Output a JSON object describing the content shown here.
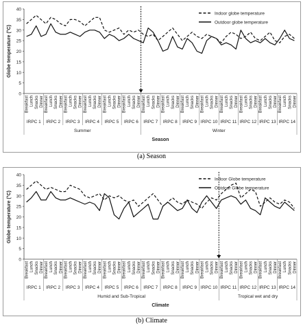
{
  "chart_data": [
    {
      "type": "line",
      "ylabel": "Globe temperature (°C)",
      "ylim": [
        0,
        40
      ],
      "yticks": [
        0,
        5,
        10,
        15,
        20,
        25,
        30,
        35,
        40
      ],
      "meals": [
        "Breakfast",
        "Lunch",
        "Snacks",
        "Dinner"
      ],
      "groups": [
        "IRPC 1",
        "IRPC 2",
        "IRPC 3",
        "IRPC 4",
        "IRPC 5",
        "IRPC 6",
        "IRPC 7",
        "IRPC 8",
        "IRPC 9",
        "IRPC 10",
        "IRPC 11",
        "IRPC 12",
        "IRPC 13",
        "IRPC 14"
      ],
      "categories_upper": [
        "Summer",
        "Winter"
      ],
      "xlabel": "Season",
      "divider_after_group": 6,
      "legend_position": "top-right",
      "grid": false,
      "series": [
        {
          "name": "Indoor globe temperature",
          "style": "dashed",
          "values": [
            33,
            35,
            37,
            35,
            33,
            36,
            35,
            33,
            32,
            35,
            35,
            34,
            32,
            34,
            36,
            36,
            30,
            29,
            30,
            31,
            28,
            30,
            29,
            30,
            28,
            27,
            28,
            25,
            27,
            29,
            31,
            28,
            25,
            27,
            29,
            27,
            26,
            28,
            27,
            26,
            24,
            27,
            29,
            28,
            26,
            27,
            29,
            26,
            25,
            27,
            29,
            25,
            24,
            27,
            28,
            26
          ]
        },
        {
          "name": "Outdoor globe temperature",
          "style": "solid",
          "values": [
            27,
            28,
            32,
            27,
            28,
            33,
            29,
            28,
            28,
            29,
            28,
            27,
            29,
            30,
            30,
            29,
            26,
            28,
            27,
            25,
            26,
            28,
            26,
            25,
            24,
            31,
            29,
            25,
            20,
            21,
            27,
            22,
            21,
            26,
            24,
            20,
            19,
            25,
            27,
            26,
            23,
            24,
            23,
            21,
            30,
            26,
            24,
            25,
            24,
            26,
            24,
            23,
            26,
            30,
            26,
            25
          ]
        }
      ]
    },
    {
      "type": "line",
      "ylabel": "Globe temperature (°C)",
      "ylim": [
        0,
        40
      ],
      "yticks": [
        0,
        5,
        10,
        15,
        20,
        25,
        30,
        35,
        40
      ],
      "meals": [
        "Breakfast",
        "Lunch",
        "Snacks",
        "Dinner"
      ],
      "groups": [
        "IRPC 1",
        "IRPC 2",
        "IRPC 3",
        "IRPC 4",
        "IRPC 5",
        "IRPC 6",
        "IRPC 7",
        "IRPC 8",
        "IRPC 9",
        "IRPC 10",
        "IRPC 11",
        "IRPC 12",
        "IRPC 13",
        "IRPC 14"
      ],
      "categories_upper": [
        "Humid and Sub-Tropical",
        "Tropical wet and dry"
      ],
      "xlabel": "Climate",
      "divider_after_group": 10,
      "legend_position": "top-right",
      "grid": false,
      "series": [
        {
          "name": "Indoor Globe temperature",
          "style": "dashed",
          "values": [
            33,
            35,
            37,
            35,
            33,
            34,
            33,
            32,
            32,
            35,
            34,
            33,
            30,
            29,
            30,
            31,
            28,
            30,
            29,
            30,
            28,
            27,
            28,
            25,
            27,
            29,
            31,
            28,
            25,
            27,
            29,
            27,
            26,
            28,
            27,
            26,
            24,
            27,
            29,
            28,
            31,
            33,
            35,
            36,
            29,
            31,
            33,
            32,
            25,
            27,
            29,
            27,
            26,
            28,
            27,
            24
          ]
        },
        {
          "name": "Outdoor Globe temperature",
          "style": "solid",
          "values": [
            27,
            29,
            32,
            28,
            28,
            32,
            29,
            28,
            28,
            29,
            28,
            27,
            26,
            27,
            26,
            23,
            31,
            29,
            21,
            19,
            24,
            27,
            20,
            22,
            24,
            26,
            19,
            19,
            25,
            27,
            25,
            23,
            24,
            28,
            24,
            22,
            27,
            30,
            27,
            24,
            28,
            29,
            30,
            29,
            26,
            28,
            24,
            23,
            21,
            29,
            27,
            25,
            24,
            27,
            25,
            23
          ]
        }
      ]
    }
  ],
  "captions": [
    "(a) Season",
    "(b) Climate"
  ]
}
